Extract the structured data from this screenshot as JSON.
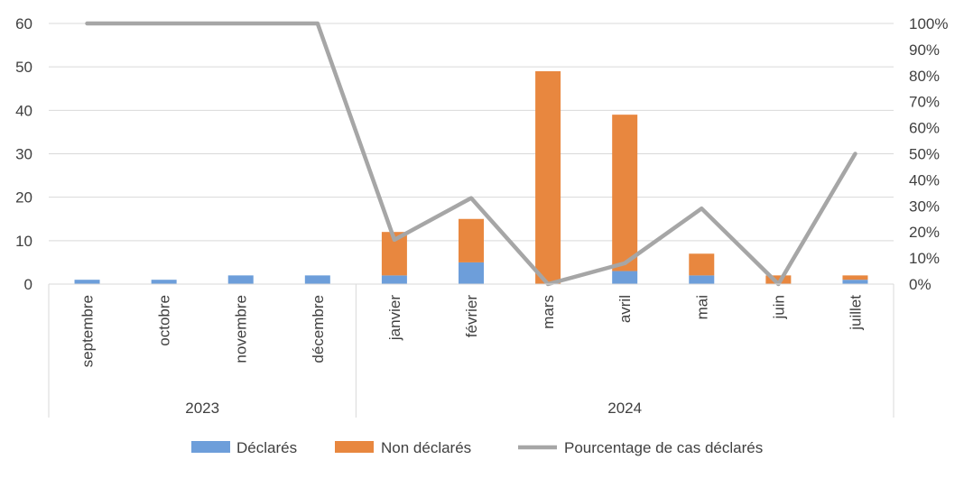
{
  "chart_data": {
    "type": "bar",
    "stacked": true,
    "title": "",
    "categories": [
      "septembre",
      "octobre",
      "novembre",
      "décembre",
      "janvier",
      "février",
      "mars",
      "avril",
      "mai",
      "juin",
      "juillet"
    ],
    "groups": [
      {
        "label": "2023",
        "count": 4
      },
      {
        "label": "2024",
        "count": 7
      }
    ],
    "series": [
      {
        "name": "Déclarés",
        "axis": "left",
        "color": "#6d9eda",
        "values": [
          1,
          1,
          2,
          2,
          2,
          5,
          0,
          3,
          2,
          0,
          1
        ]
      },
      {
        "name": "Non déclarés",
        "axis": "left",
        "color": "#e8873f",
        "values": [
          0,
          0,
          0,
          0,
          10,
          10,
          49,
          36,
          5,
          2,
          1
        ]
      },
      {
        "name": "Pourcentage de cas déclarés",
        "type": "line",
        "axis": "right",
        "color": "#a6a6a6",
        "values": [
          100,
          100,
          100,
          100,
          17,
          33,
          0,
          8,
          29,
          0,
          50
        ]
      }
    ],
    "y_left": {
      "min": 0,
      "max": 60,
      "ticks": [
        "0",
        "10",
        "20",
        "30",
        "40",
        "50",
        "60"
      ]
    },
    "y_right": {
      "min": 0,
      "max": 100,
      "ticks": [
        "0%",
        "10%",
        "20%",
        "30%",
        "40%",
        "50%",
        "60%",
        "70%",
        "80%",
        "90%",
        "100%"
      ]
    },
    "grid": true,
    "legend_position": "bottom"
  }
}
